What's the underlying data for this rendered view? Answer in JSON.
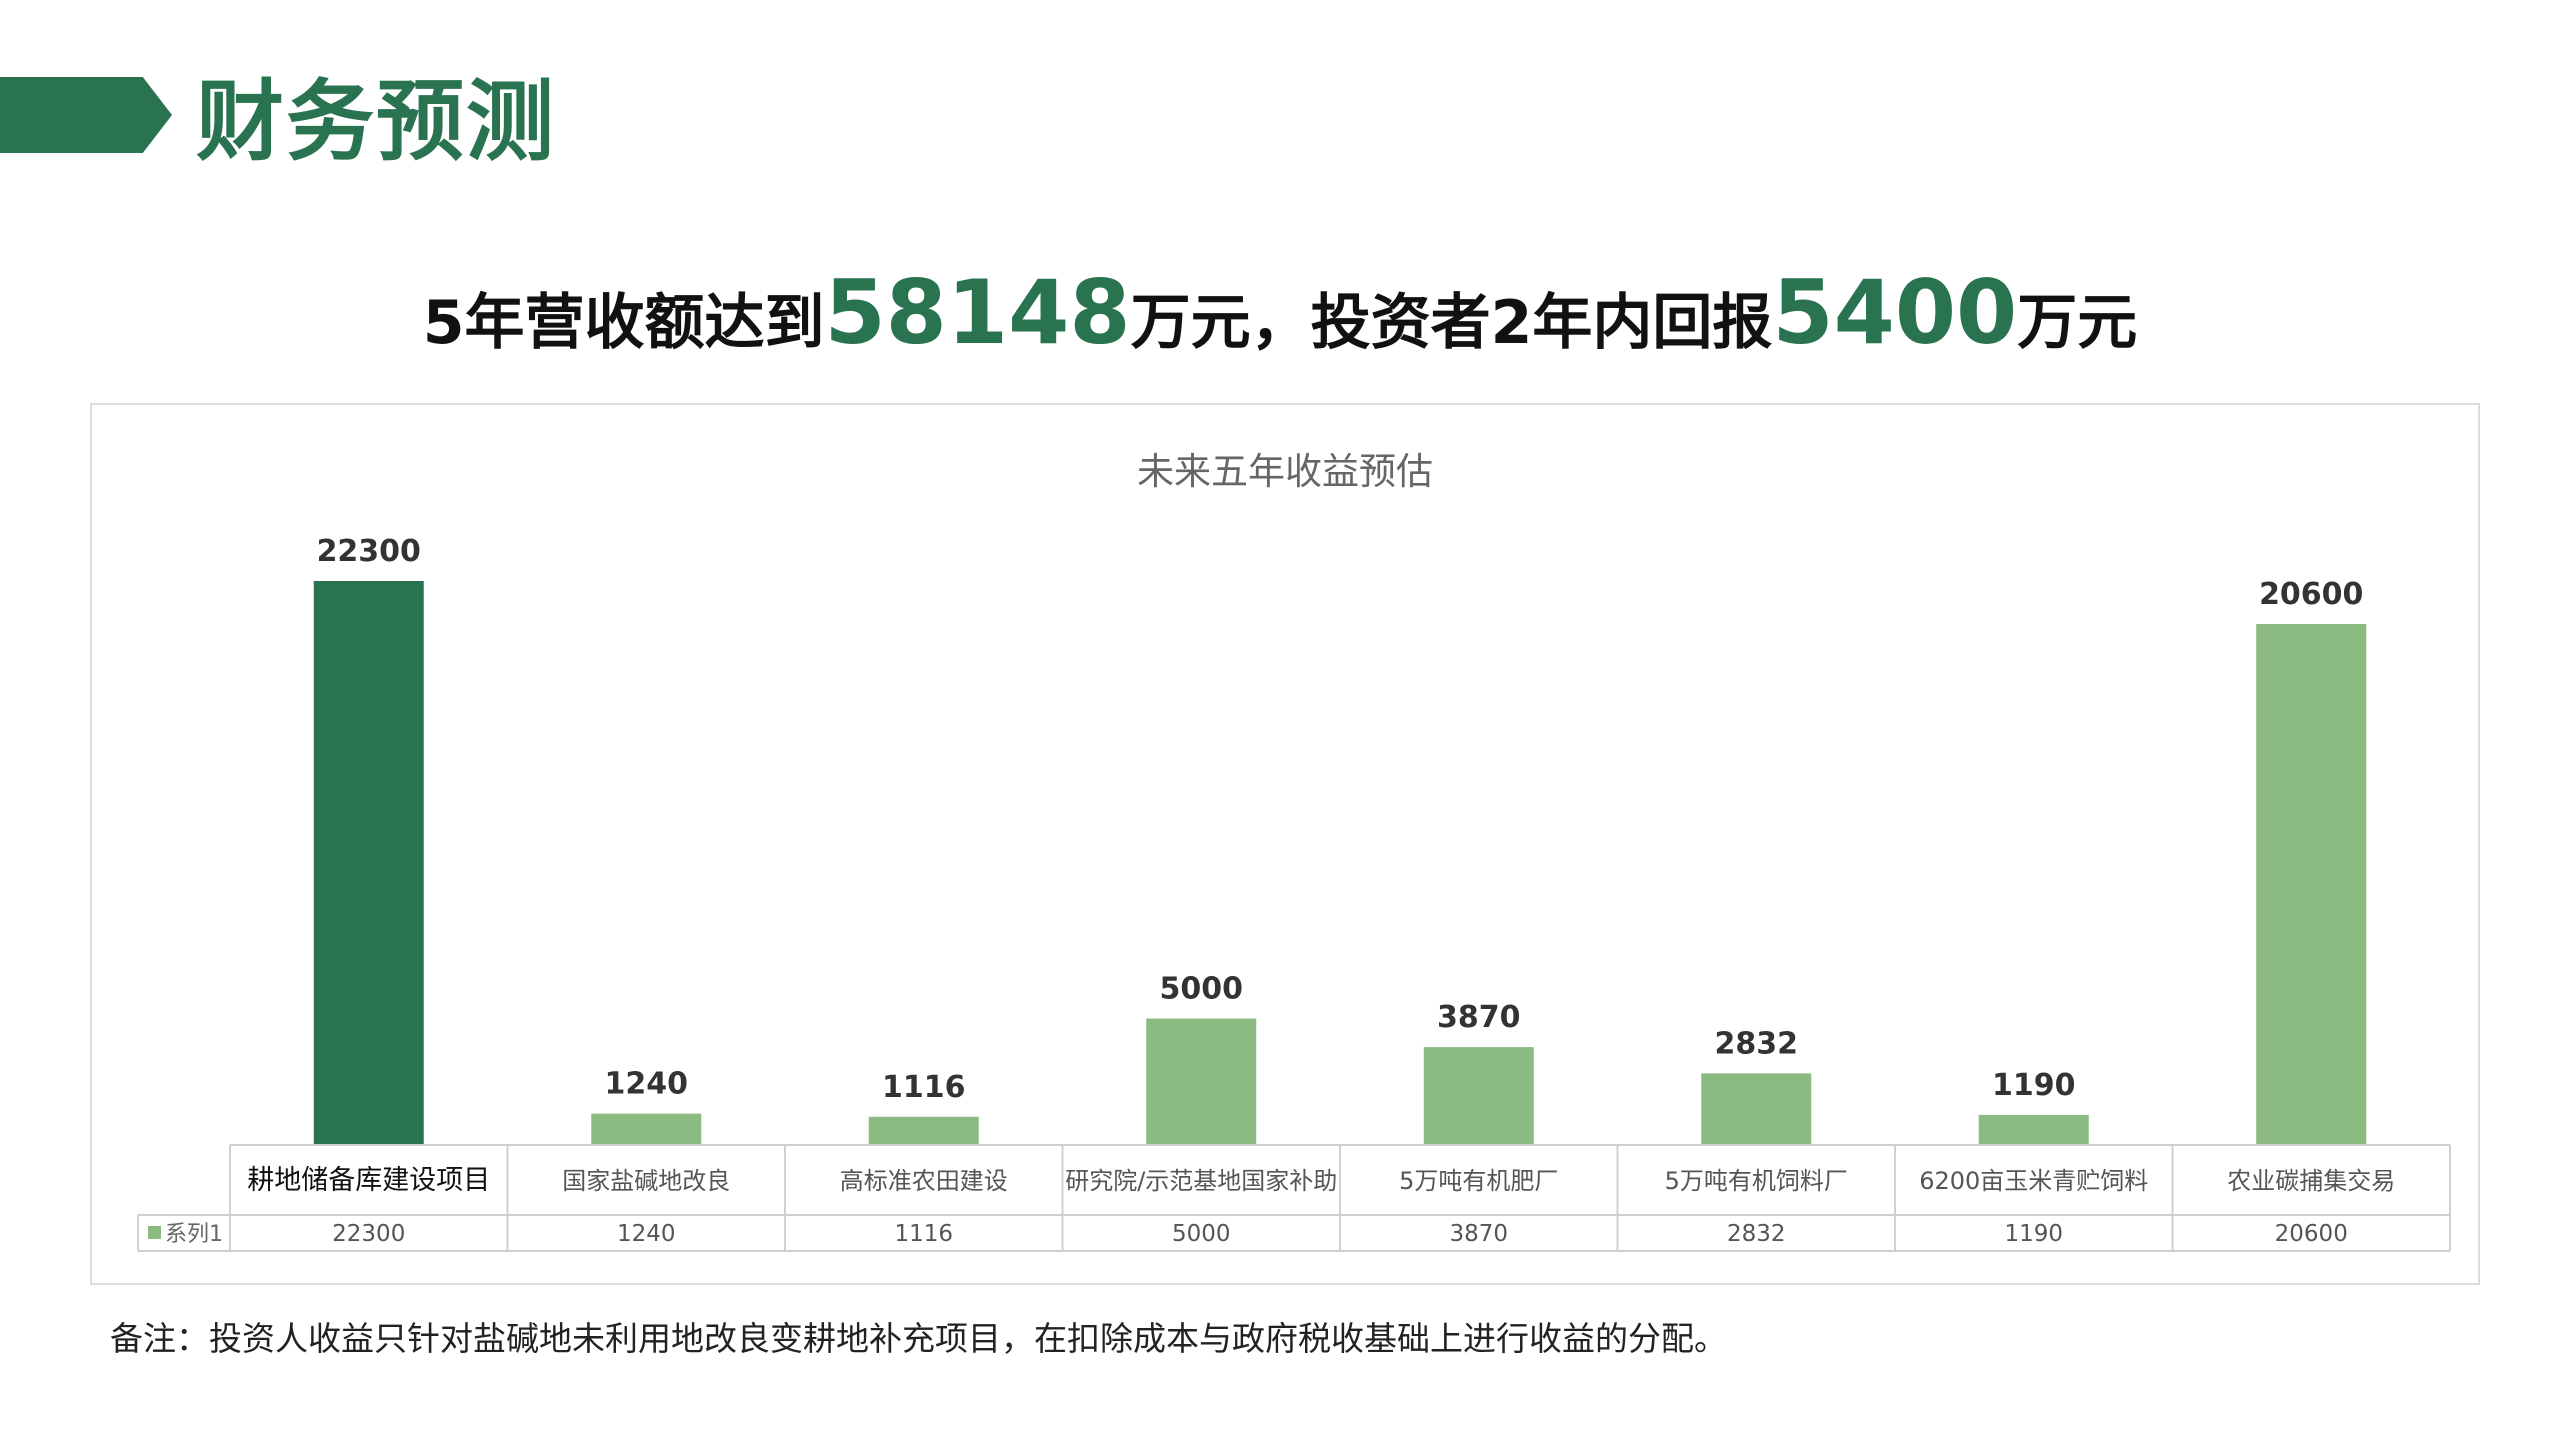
{
  "header": {
    "title": "财务预测"
  },
  "headline": {
    "part1": "5年营收额达到",
    "num1": "58148",
    "part2": "万元，投资者2年内回报",
    "num2": "5400",
    "part3": "万元"
  },
  "colors": {
    "brand": "#2a7350",
    "highlight_bar": "#2a7350",
    "bar": "#8bbb80"
  },
  "chart_data": {
    "type": "bar",
    "title": "未来五年收益预估",
    "categories": [
      "耕地储备库建设项目",
      "国家盐碱地改良",
      "高标准农田建设",
      "研究院/示范基地国家补助",
      "5万吨有机肥厂",
      "5万吨有机饲料厂",
      "6200亩玉米青贮饲料",
      "农业碳捕集交易"
    ],
    "series": [
      {
        "name": "系列1",
        "values": [
          22300,
          1240,
          1116,
          5000,
          3870,
          2832,
          1190,
          20600
        ]
      }
    ],
    "highlight_index": 0,
    "ylim": [
      0,
      22300
    ],
    "legend": "data-table",
    "grid": false
  },
  "footnote": "备注：投资人收益只针对盐碱地未利用地改良变耕地补充项目，在扣除成本与政府税收基础上进行收益的分配。"
}
